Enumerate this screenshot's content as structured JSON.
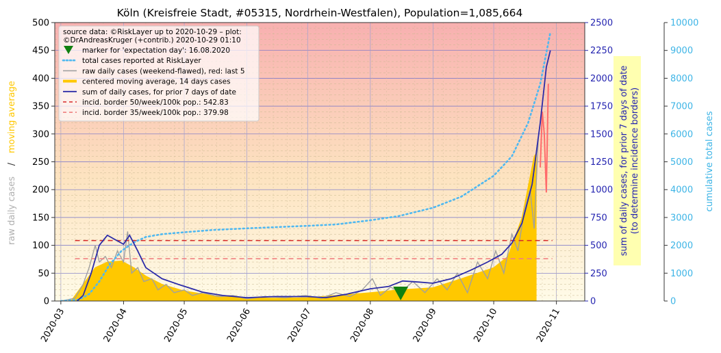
{
  "chart_data": {
    "type": "line",
    "title": "Köln (Kreisfreie Stadt, #05315, Nordrhein-Westfalen), Population=1,085,664",
    "x_axis": {
      "type": "date",
      "range": [
        "2020-02-27",
        "2020-11-15"
      ],
      "ticks": [
        "2020-03",
        "2020-04",
        "2020-05",
        "2020-06",
        "2020-07",
        "2020-08",
        "2020-09",
        "2020-10",
        "2020-11"
      ]
    },
    "y_left": {
      "label_raw": "raw daily cases",
      "label_sep": "/",
      "label_avg": "moving average",
      "range": [
        0,
        500
      ],
      "ticks": [
        0,
        50,
        100,
        150,
        200,
        250,
        300,
        350,
        400,
        450,
        500
      ]
    },
    "y_right": {
      "label_line1": "sum of daily cases, for prior 7 days of date",
      "label_line2": "(to determine incidence borders)",
      "range": [
        0,
        2500
      ],
      "ticks": [
        0,
        250,
        500,
        750,
        1000,
        1250,
        1500,
        1750,
        2000,
        2250,
        2500
      ]
    },
    "y_cumulative": {
      "label": "cumulative total cases",
      "range": [
        0,
        10000
      ],
      "ticks": [
        0,
        1000,
        2000,
        3000,
        4000,
        5000,
        6000,
        7000,
        8000,
        9000,
        10000
      ]
    },
    "legend": {
      "position": "top-left",
      "header": [
        "source data: ©RiskLayer up to 2020-10-29 – plot:",
        "©DrAndreasKruger (+contrib.) 2020-10-29 01:10"
      ],
      "entries": [
        "marker for 'expectation day': 16.08.2020",
        "total cases reported at RiskLayer",
        "raw daily cases (weekend-flawed), red: last 5",
        "centered moving average, 14 days cases",
        "sum of daily cases, for prior 7 days of date",
        "incid. border 50/week/100k pop.: 542.83",
        "incid. border 35/week/100k pop.: 379.98"
      ]
    },
    "incidence_borders": [
      {
        "value": 542.83,
        "color": "#d62728"
      },
      {
        "value": 379.98,
        "color": "#f08080"
      }
    ],
    "expectation_day": "2020-08-16",
    "colors": {
      "cumulative": "#4fb8f0",
      "raw": "#a0a0a0",
      "raw_recent": "#ff6b6b",
      "moving_avg": "#ffc800",
      "sum7": "#2b2ba8",
      "right_axis": "#2424b0",
      "cumulative_axis": "#3cb4e6",
      "left_label_avg": "#ffc800",
      "left_label_raw": "#b0b0b0",
      "marker": "#108010",
      "bg_top": "#f8b0b0",
      "bg_bottom": "#fffbe8"
    },
    "series": {
      "cumulative": [
        [
          "2020-03-01",
          0
        ],
        [
          "2020-03-10",
          50
        ],
        [
          "2020-03-15",
          250
        ],
        [
          "2020-03-20",
          700
        ],
        [
          "2020-03-25",
          1300
        ],
        [
          "2020-03-31",
          1800
        ],
        [
          "2020-04-06",
          2100
        ],
        [
          "2020-04-12",
          2300
        ],
        [
          "2020-04-20",
          2400
        ],
        [
          "2020-05-01",
          2470
        ],
        [
          "2020-05-15",
          2550
        ],
        [
          "2020-06-01",
          2610
        ],
        [
          "2020-06-15",
          2650
        ],
        [
          "2020-07-01",
          2700
        ],
        [
          "2020-07-15",
          2750
        ],
        [
          "2020-08-01",
          2900
        ],
        [
          "2020-08-15",
          3050
        ],
        [
          "2020-09-01",
          3350
        ],
        [
          "2020-09-15",
          3750
        ],
        [
          "2020-10-01",
          4500
        ],
        [
          "2020-10-10",
          5200
        ],
        [
          "2020-10-18",
          6400
        ],
        [
          "2020-10-24",
          7800
        ],
        [
          "2020-10-29",
          9650
        ]
      ],
      "moving_avg": [
        [
          "2020-03-06",
          0
        ],
        [
          "2020-03-12",
          30
        ],
        [
          "2020-03-18",
          60
        ],
        [
          "2020-03-24",
          70
        ],
        [
          "2020-03-31",
          72
        ],
        [
          "2020-04-06",
          60
        ],
        [
          "2020-04-12",
          45
        ],
        [
          "2020-04-20",
          30
        ],
        [
          "2020-05-01",
          18
        ],
        [
          "2020-05-15",
          10
        ],
        [
          "2020-06-01",
          6
        ],
        [
          "2020-06-15",
          5
        ],
        [
          "2020-07-01",
          6
        ],
        [
          "2020-07-15",
          10
        ],
        [
          "2020-08-01",
          15
        ],
        [
          "2020-08-15",
          20
        ],
        [
          "2020-09-01",
          24
        ],
        [
          "2020-09-15",
          40
        ],
        [
          "2020-10-01",
          60
        ],
        [
          "2020-10-08",
          80
        ],
        [
          "2020-10-15",
          150
        ],
        [
          "2020-10-21",
          260
        ],
        [
          "2020-10-22",
          265
        ],
        [
          "2020-10-22",
          0
        ]
      ],
      "raw": [
        [
          "2020-03-01",
          0
        ],
        [
          "2020-03-08",
          5
        ],
        [
          "2020-03-12",
          30
        ],
        [
          "2020-03-15",
          60
        ],
        [
          "2020-03-18",
          100
        ],
        [
          "2020-03-20",
          70
        ],
        [
          "2020-03-23",
          80
        ],
        [
          "2020-03-26",
          60
        ],
        [
          "2020-03-29",
          90
        ],
        [
          "2020-04-01",
          70
        ],
        [
          "2020-04-03",
          125
        ],
        [
          "2020-04-05",
          50
        ],
        [
          "2020-04-08",
          60
        ],
        [
          "2020-04-11",
          35
        ],
        [
          "2020-04-15",
          40
        ],
        [
          "2020-04-18",
          20
        ],
        [
          "2020-04-22",
          30
        ],
        [
          "2020-04-26",
          15
        ],
        [
          "2020-05-01",
          20
        ],
        [
          "2020-05-05",
          10
        ],
        [
          "2020-05-10",
          15
        ],
        [
          "2020-05-18",
          8
        ],
        [
          "2020-05-25",
          10
        ],
        [
          "2020-06-01",
          4
        ],
        [
          "2020-06-10",
          8
        ],
        [
          "2020-06-20",
          6
        ],
        [
          "2020-06-30",
          10
        ],
        [
          "2020-07-08",
          5
        ],
        [
          "2020-07-15",
          15
        ],
        [
          "2020-07-22",
          8
        ],
        [
          "2020-07-28",
          20
        ],
        [
          "2020-08-02",
          40
        ],
        [
          "2020-08-06",
          10
        ],
        [
          "2020-08-11",
          25
        ],
        [
          "2020-08-16",
          15
        ],
        [
          "2020-08-22",
          35
        ],
        [
          "2020-08-28",
          15
        ],
        [
          "2020-09-03",
          40
        ],
        [
          "2020-09-08",
          20
        ],
        [
          "2020-09-13",
          50
        ],
        [
          "2020-09-18",
          15
        ],
        [
          "2020-09-23",
          70
        ],
        [
          "2020-09-28",
          40
        ],
        [
          "2020-10-02",
          90
        ],
        [
          "2020-10-06",
          50
        ],
        [
          "2020-10-10",
          120
        ],
        [
          "2020-10-13",
          90
        ],
        [
          "2020-10-16",
          160
        ],
        [
          "2020-10-19",
          200
        ],
        [
          "2020-10-21",
          130
        ],
        [
          "2020-10-23",
          290
        ]
      ],
      "raw_recent": [
        [
          "2020-10-24",
          240
        ],
        [
          "2020-10-25",
          340
        ],
        [
          "2020-10-26",
          300
        ],
        [
          "2020-10-27",
          195
        ],
        [
          "2020-10-28",
          390
        ]
      ],
      "sum7": [
        [
          "2020-03-09",
          0
        ],
        [
          "2020-03-12",
          50
        ],
        [
          "2020-03-16",
          250
        ],
        [
          "2020-03-20",
          500
        ],
        [
          "2020-03-24",
          590
        ],
        [
          "2020-03-28",
          550
        ],
        [
          "2020-04-01",
          510
        ],
        [
          "2020-04-04",
          590
        ],
        [
          "2020-04-08",
          450
        ],
        [
          "2020-04-12",
          300
        ],
        [
          "2020-04-20",
          200
        ],
        [
          "2020-04-28",
          150
        ],
        [
          "2020-05-10",
          80
        ],
        [
          "2020-05-20",
          50
        ],
        [
          "2020-06-01",
          30
        ],
        [
          "2020-06-15",
          40
        ],
        [
          "2020-07-01",
          40
        ],
        [
          "2020-07-10",
          30
        ],
        [
          "2020-07-20",
          60
        ],
        [
          "2020-08-01",
          110
        ],
        [
          "2020-08-10",
          130
        ],
        [
          "2020-08-17",
          180
        ],
        [
          "2020-08-25",
          170
        ],
        [
          "2020-09-01",
          160
        ],
        [
          "2020-09-10",
          200
        ],
        [
          "2020-09-20",
          280
        ],
        [
          "2020-09-28",
          350
        ],
        [
          "2020-10-05",
          420
        ],
        [
          "2020-10-10",
          520
        ],
        [
          "2020-10-15",
          700
        ],
        [
          "2020-10-20",
          1050
        ],
        [
          "2020-10-24",
          1600
        ],
        [
          "2020-10-27",
          2100
        ],
        [
          "2020-10-29",
          2250
        ]
      ]
    }
  }
}
